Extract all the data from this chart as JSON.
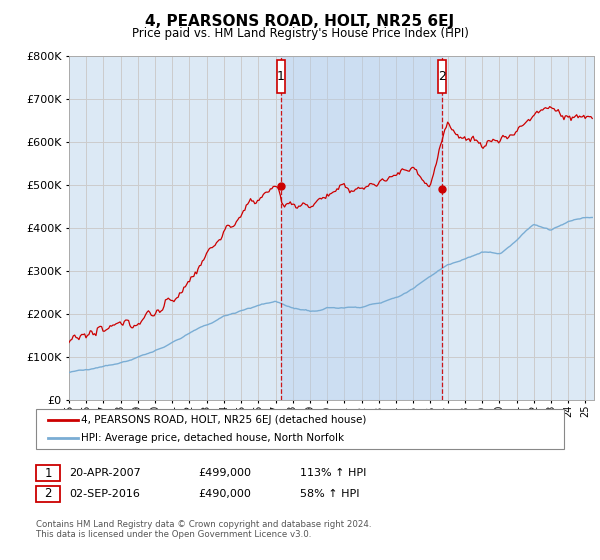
{
  "title": "4, PEARSONS ROAD, HOLT, NR25 6EJ",
  "subtitle": "Price paid vs. HM Land Registry's House Price Index (HPI)",
  "legend_line1": "4, PEARSONS ROAD, HOLT, NR25 6EJ (detached house)",
  "legend_line2": "HPI: Average price, detached house, North Norfolk",
  "annotation1_label": "1",
  "annotation1_date": "20-APR-2007",
  "annotation1_price": "£499,000",
  "annotation1_hpi": "113% ↑ HPI",
  "annotation1_year": 2007.3,
  "annotation1_value": 499000,
  "annotation2_label": "2",
  "annotation2_date": "02-SEP-2016",
  "annotation2_price": "£490,000",
  "annotation2_hpi": "58% ↑ HPI",
  "annotation2_year": 2016.67,
  "annotation2_value": 490000,
  "footnote": "Contains HM Land Registry data © Crown copyright and database right 2024.\nThis data is licensed under the Open Government Licence v3.0.",
  "ylim": [
    0,
    800000
  ],
  "xlim_start": 1995.0,
  "xlim_end": 2025.5,
  "price_color": "#cc0000",
  "hpi_color": "#7aadd4",
  "background_color": "#dce9f5",
  "shade_color": "#c5d8ee",
  "plot_bg": "#ffffff",
  "grid_color": "#cccccc",
  "annotation_box_color": "#cc0000",
  "dot_color": "#cc0000"
}
